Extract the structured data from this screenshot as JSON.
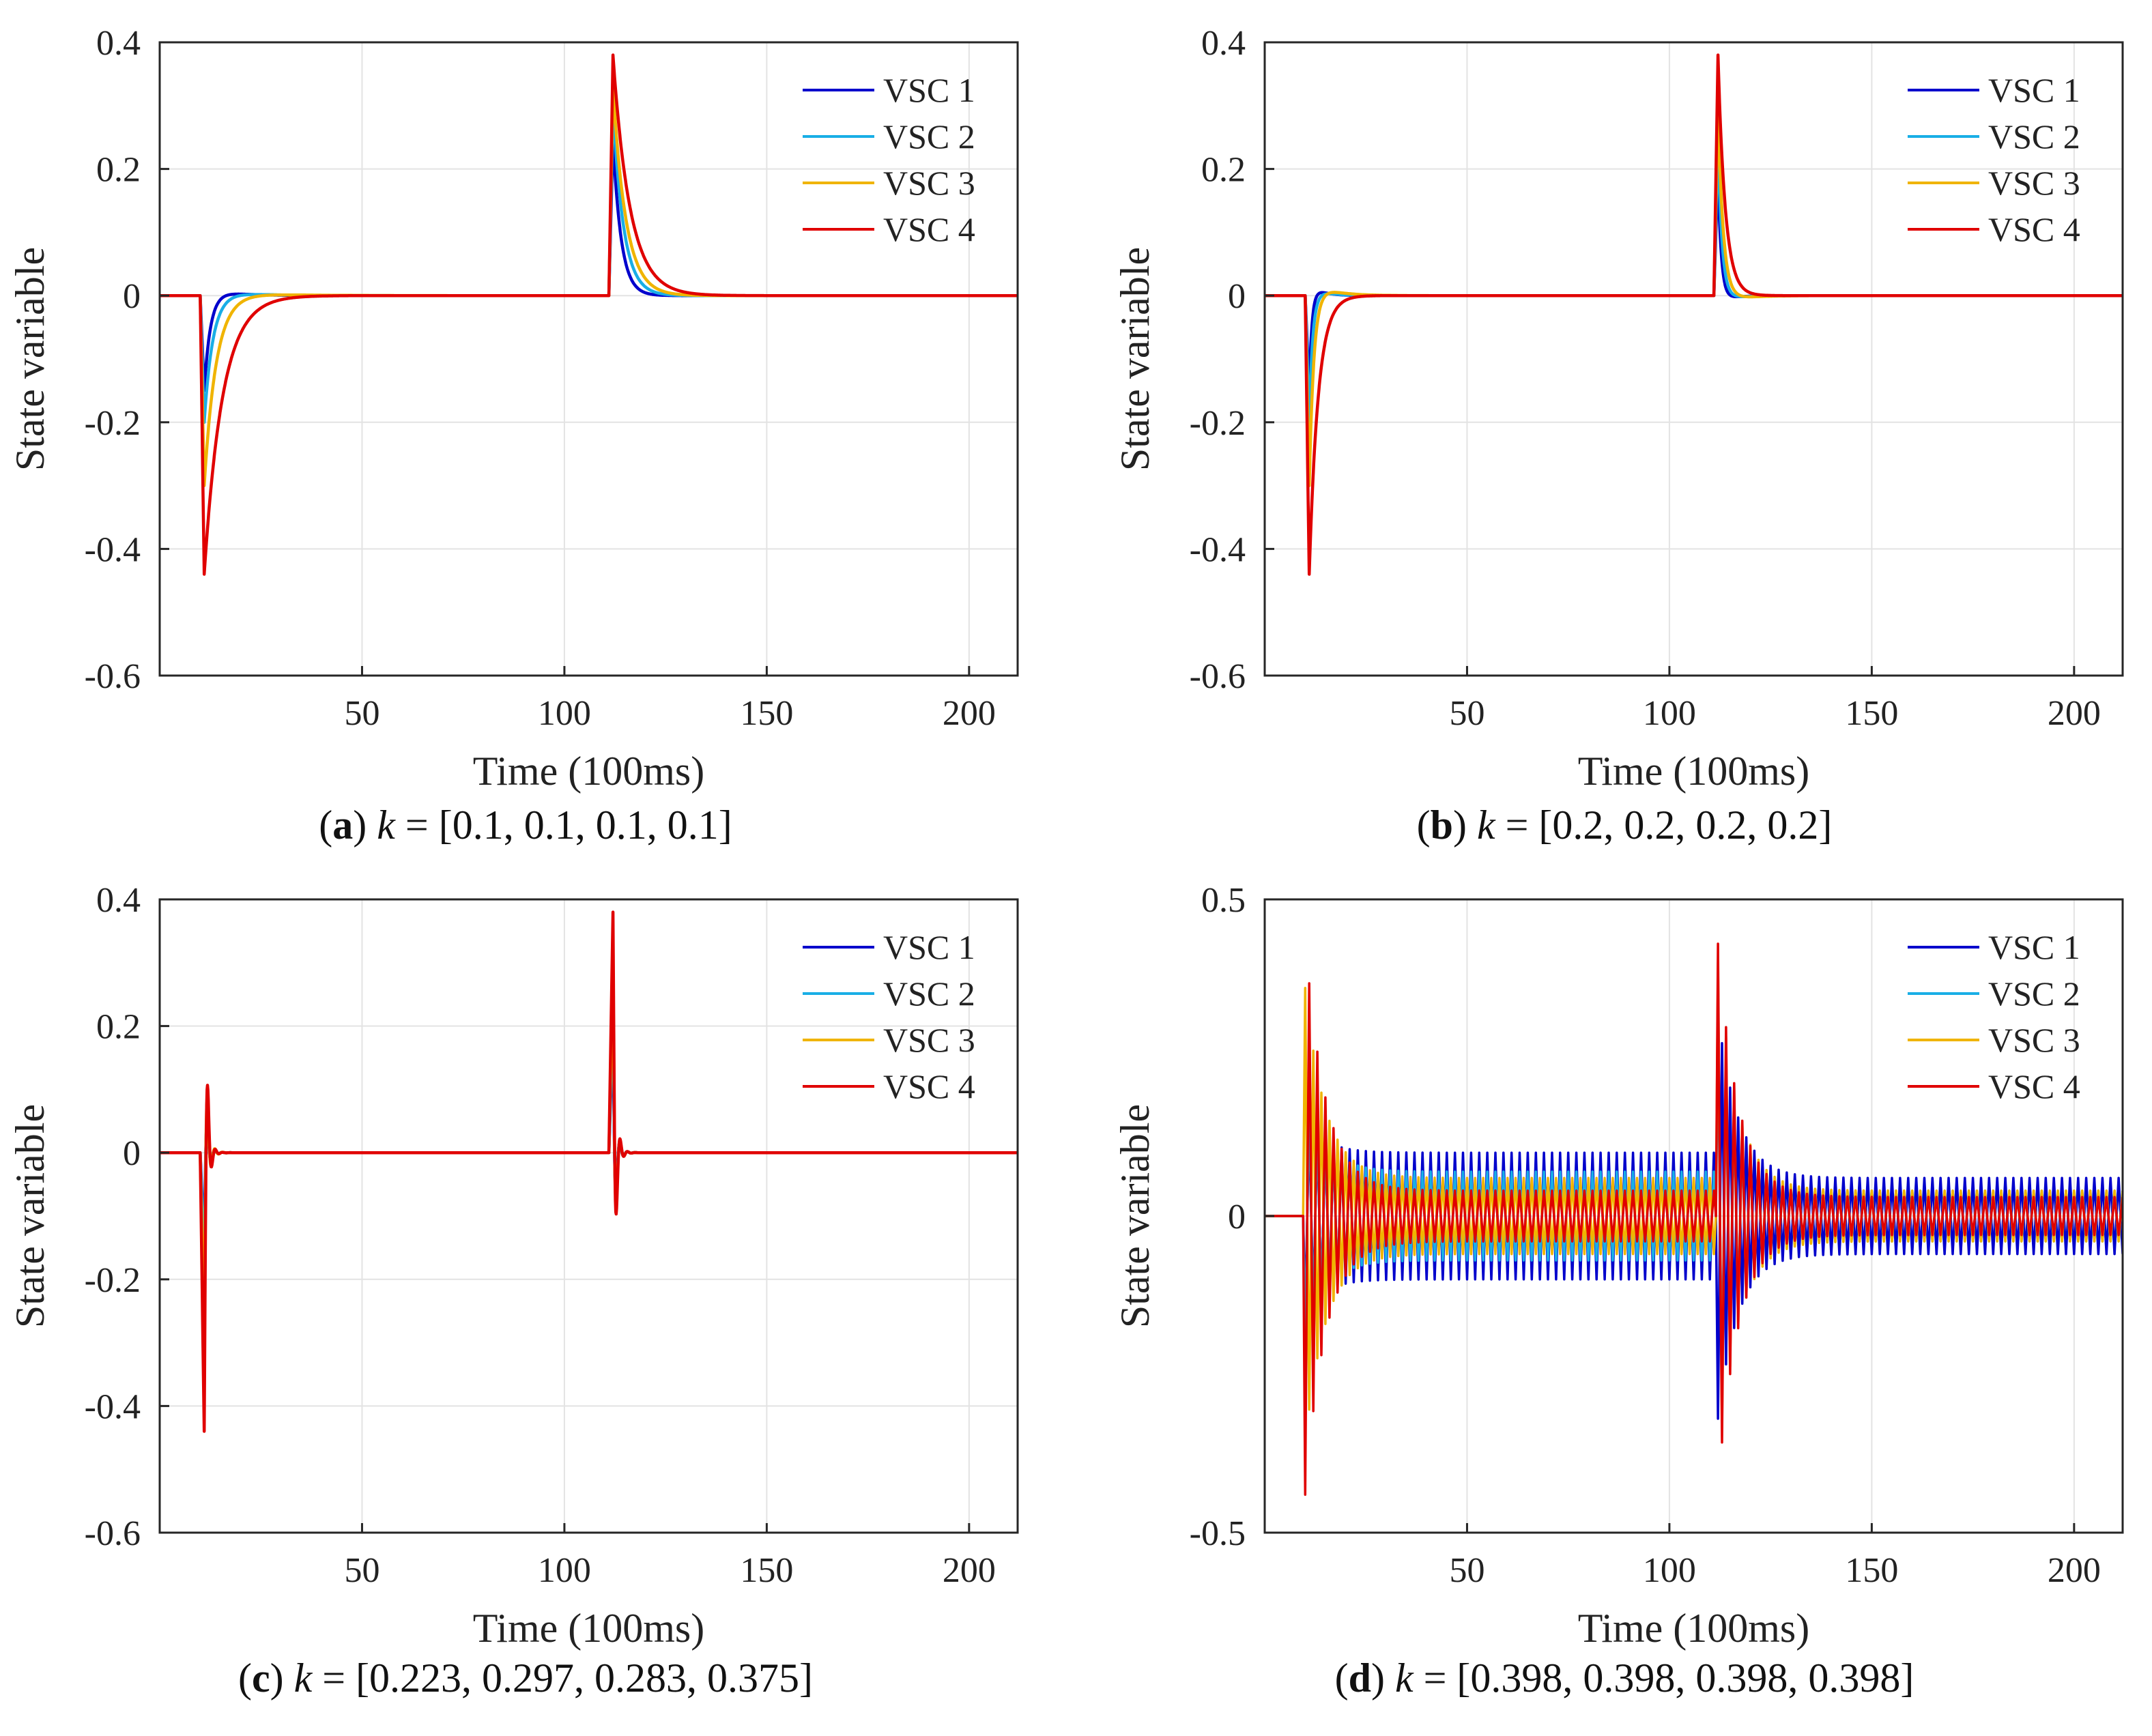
{
  "chart_data": [
    {
      "type": "line",
      "panel": "a",
      "caption_label": "a",
      "caption_value": "[0.1, 0.1, 0.1, 0.1]",
      "k_symbol": "k",
      "xlabel": "Time (100ms)",
      "ylabel": "State variable",
      "xlim": [
        0,
        212
      ],
      "ylim": [
        -0.6,
        0.4
      ],
      "xticks": [
        "50",
        "100",
        "150",
        "200"
      ],
      "xtick_values": [
        50,
        100,
        150,
        200
      ],
      "yticks": [
        "0.4",
        "0.2",
        "0",
        "-0.2",
        "-0.4",
        "-0.6"
      ],
      "ytick_values": [
        0.4,
        0.2,
        0,
        -0.2,
        -0.4,
        -0.6
      ],
      "grid": true,
      "legend_position": "top-right",
      "event_times": [
        10,
        111
      ],
      "series": [
        {
          "name": "VSC 1",
          "color": "#0000cc",
          "step1_peak": -0.15,
          "step2_peak": 0.25,
          "decay1": 1.6,
          "decay2": 2.0,
          "overshoot1": 0.012,
          "overshoot2": 0,
          "osc_amp1": 0,
          "osc_amp2": 0,
          "osc_period": 0
        },
        {
          "name": "VSC 2",
          "color": "#19aee6",
          "step1_peak": -0.2,
          "step2_peak": 0.3,
          "decay1": 2.2,
          "decay2": 2.6,
          "overshoot1": 0.01,
          "overshoot2": 0,
          "osc_amp1": 0,
          "osc_amp2": 0,
          "osc_period": 0
        },
        {
          "name": "VSC 3",
          "color": "#f0b400",
          "step1_peak": -0.3,
          "step2_peak": 0.33,
          "decay1": 3.0,
          "decay2": 3.2,
          "overshoot1": 0.008,
          "overshoot2": 0,
          "osc_amp1": 0,
          "osc_amp2": 0,
          "osc_period": 0
        },
        {
          "name": "VSC 4",
          "color": "#e00000",
          "step1_peak": -0.44,
          "step2_peak": 0.38,
          "decay1": 4.5,
          "decay2": 4.2,
          "overshoot1": 0,
          "overshoot2": 0,
          "osc_amp1": 0,
          "osc_amp2": 0,
          "osc_period": 0
        }
      ]
    },
    {
      "type": "line",
      "panel": "b",
      "caption_label": "b",
      "caption_value": "[0.2, 0.2, 0.2, 0.2]",
      "k_symbol": "k",
      "xlabel": "Time (100ms)",
      "ylabel": "State variable",
      "xlim": [
        0,
        212
      ],
      "ylim": [
        -0.6,
        0.4
      ],
      "xticks": [
        "50",
        "100",
        "150",
        "200"
      ],
      "xtick_values": [
        50,
        100,
        150,
        200
      ],
      "yticks": [
        "0.4",
        "0.2",
        "0",
        "-0.2",
        "-0.4",
        "-0.6"
      ],
      "ytick_values": [
        0.4,
        0.2,
        0,
        -0.2,
        -0.4,
        -0.6
      ],
      "grid": true,
      "legend_position": "top-right",
      "event_times": [
        10,
        111
      ],
      "series": [
        {
          "name": "VSC 1",
          "color": "#0000cc",
          "step1_peak": -0.15,
          "step2_peak": 0.2,
          "decay1": 0.7,
          "decay2": 0.8,
          "overshoot1": 0.02,
          "overshoot2": -0.01,
          "osc_amp1": 0,
          "osc_amp2": 0,
          "osc_period": 0
        },
        {
          "name": "VSC 2",
          "color": "#19aee6",
          "step1_peak": -0.2,
          "step2_peak": 0.25,
          "decay1": 0.9,
          "decay2": 1.0,
          "overshoot1": 0.015,
          "overshoot2": -0.01,
          "osc_amp1": 0,
          "osc_amp2": 0,
          "osc_period": 0
        },
        {
          "name": "VSC 3",
          "color": "#f0b400",
          "step1_peak": -0.3,
          "step2_peak": 0.3,
          "decay1": 1.2,
          "decay2": 1.3,
          "overshoot1": 0.025,
          "overshoot2": -0.012,
          "osc_amp1": 0,
          "osc_amp2": 0,
          "osc_period": 0
        },
        {
          "name": "VSC 4",
          "color": "#e00000",
          "step1_peak": -0.44,
          "step2_peak": 0.38,
          "decay1": 2.2,
          "decay2": 1.8,
          "overshoot1": 0,
          "overshoot2": 0,
          "osc_amp1": 0,
          "osc_amp2": 0,
          "osc_period": 0
        }
      ]
    },
    {
      "type": "line",
      "panel": "c",
      "caption_label": "c",
      "caption_value": "[0.223, 0.297, 0.283, 0.375]",
      "k_symbol": "k",
      "xlabel": "Time (100ms)",
      "ylabel": "State variable",
      "xlim": [
        0,
        212
      ],
      "ylim": [
        -0.6,
        0.4
      ],
      "xticks": [
        "50",
        "100",
        "150",
        "200"
      ],
      "xtick_values": [
        50,
        100,
        150,
        200
      ],
      "yticks": [
        "0.4",
        "0.2",
        "0",
        "-0.2",
        "-0.4",
        "-0.6"
      ],
      "ytick_values": [
        0.4,
        0.2,
        0,
        -0.2,
        -0.4,
        -0.6
      ],
      "grid": true,
      "legend_position": "top-right",
      "event_times": [
        10,
        111
      ],
      "series": [
        {
          "name": "VSC 1",
          "color": "#0000cc",
          "step1_peak": -0.15,
          "step2_peak": 0.2,
          "decay1": 1.0,
          "decay2": 1.0,
          "overshoot1": 0,
          "overshoot2": 0,
          "osc_amp1": 0.12,
          "osc_amp2": 0.14,
          "osc_period": 2.2
        },
        {
          "name": "VSC 2",
          "color": "#19aee6",
          "step1_peak": -0.2,
          "step2_peak": 0.25,
          "decay1": 1.0,
          "decay2": 1.0,
          "overshoot1": 0,
          "overshoot2": 0,
          "osc_amp1": 0.13,
          "osc_amp2": 0.14,
          "osc_period": 2.2
        },
        {
          "name": "VSC 3",
          "color": "#f0b400",
          "step1_peak": -0.3,
          "step2_peak": 0.3,
          "decay1": 1.0,
          "decay2": 1.0,
          "overshoot1": 0,
          "overshoot2": 0,
          "osc_amp1": 0.18,
          "osc_amp2": 0.14,
          "osc_period": 2.2
        },
        {
          "name": "VSC 4",
          "color": "#e00000",
          "step1_peak": -0.44,
          "step2_peak": 0.38,
          "decay1": 1.0,
          "decay2": 1.0,
          "overshoot1": 0,
          "overshoot2": 0,
          "osc_amp1": 0.12,
          "osc_amp2": 0.15,
          "osc_period": 2.2
        }
      ]
    },
    {
      "type": "line",
      "panel": "d",
      "caption_label": "d",
      "caption_value": "[0.398, 0.398, 0.398, 0.398]",
      "k_symbol": "k",
      "xlabel": "Time (100ms)",
      "ylabel": "State variable",
      "xlim": [
        0,
        212
      ],
      "ylim": [
        -0.5,
        0.5
      ],
      "xticks": [
        "50",
        "100",
        "150",
        "200"
      ],
      "xtick_values": [
        50,
        100,
        150,
        200
      ],
      "yticks": [
        "0.5",
        "0",
        "-0.5"
      ],
      "ytick_values": [
        0.5,
        0,
        -0.5
      ],
      "grid": true,
      "legend_position": "top-right",
      "event_times": [
        10,
        112
      ],
      "sustained": true,
      "series": [
        {
          "name": "VSC 1",
          "color": "#0000cc",
          "step1_peak": -0.15,
          "step2_peak": -0.32,
          "sustain1": 0.1,
          "sustain2": 0.06,
          "init_amp1": 0.2,
          "init_amp2": 0.3,
          "osc_period": 2.0
        },
        {
          "name": "VSC 2",
          "color": "#19aee6",
          "step1_peak": -0.2,
          "step2_peak": 0.3,
          "sustain1": 0.07,
          "sustain2": 0.04,
          "init_amp1": 0.3,
          "init_amp2": 0.3,
          "osc_period": 2.0
        },
        {
          "name": "VSC 3",
          "color": "#f0b400",
          "step1_peak": 0.36,
          "step2_peak": 0.4,
          "sustain1": 0.06,
          "sustain2": 0.04,
          "init_amp1": 0.36,
          "init_amp2": 0.35,
          "osc_period": 2.0
        },
        {
          "name": "VSC 4",
          "color": "#e00000",
          "step1_peak": -0.44,
          "step2_peak": 0.43,
          "sustain1": 0.04,
          "sustain2": 0.03,
          "init_amp1": 0.44,
          "init_amp2": 0.43,
          "osc_period": 2.0
        }
      ]
    }
  ]
}
